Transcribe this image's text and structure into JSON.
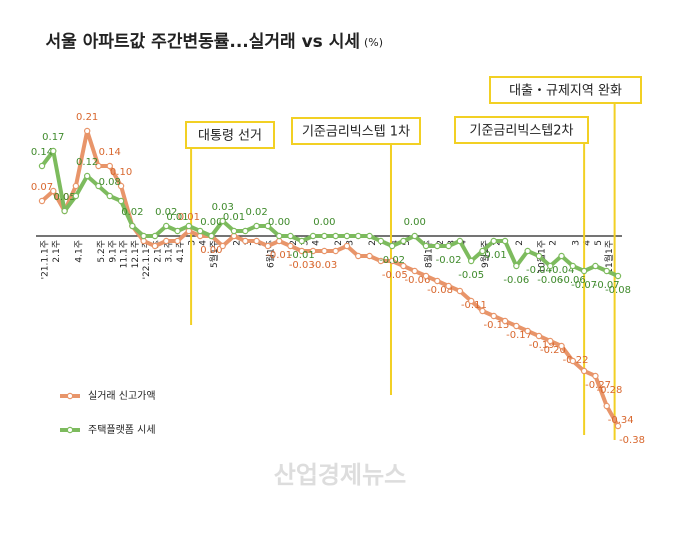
{
  "chart_data": {
    "type": "line",
    "title": "서울 아파트값 주간변동률...실거래 vs 시세",
    "unit": "(%)",
    "categories": [
      "'21.1.1주",
      "2.1주",
      null,
      "4.1주",
      null,
      "5.2주",
      "9.1주",
      "11.1주",
      "12.1주",
      "'22.1.1주",
      "2.1주",
      "3.1주",
      "4.1주",
      "3",
      "4",
      "5월1주",
      null,
      "2",
      "3",
      "4",
      "6월1주",
      null,
      "2",
      "3",
      "4",
      null,
      "2",
      "3",
      null,
      "2",
      "3",
      "4",
      "5",
      null,
      "8월1주",
      "2",
      "3",
      "4",
      null,
      "9월1주",
      "2",
      null,
      "2",
      null,
      "10월1주",
      "2",
      null,
      "3",
      "4",
      "5",
      "11월1주",
      null
    ],
    "ylim": [
      -0.42,
      0.25
    ],
    "series": [
      {
        "name": "실거래 신고가액",
        "color": "#e8956a",
        "values": [
          0.07,
          0.09,
          0.05,
          0.1,
          0.21,
          0.14,
          0.14,
          0.1,
          0.02,
          -0.01,
          -0.02,
          -0.01,
          -0.01,
          0.01,
          0.0,
          0.0,
          -0.02,
          0.0,
          -0.01,
          -0.01,
          -0.02,
          -0.01,
          -0.02,
          -0.03,
          -0.03,
          -0.03,
          -0.03,
          -0.02,
          -0.04,
          -0.04,
          -0.05,
          -0.05,
          -0.06,
          -0.07,
          -0.08,
          -0.09,
          -0.1,
          -0.11,
          -0.13,
          -0.15,
          -0.16,
          -0.17,
          -0.18,
          -0.19,
          -0.2,
          -0.21,
          -0.22,
          -0.25,
          -0.27,
          -0.28,
          -0.34,
          -0.38
        ],
        "value_labels": [
          "0.07",
          null,
          "0.05",
          null,
          "0.21",
          null,
          "0.14",
          "0.10",
          null,
          null,
          null,
          null,
          null,
          "0.01",
          null,
          "0.00",
          null,
          null,
          null,
          null,
          null,
          "-0.01",
          null,
          "-0.03",
          null,
          "-0.03",
          null,
          null,
          null,
          null,
          "-0.05",
          null,
          "-0.06",
          null,
          "-0.08",
          null,
          null,
          "-0.11",
          null,
          "-0.15",
          null,
          "-0.17",
          null,
          "-0.19",
          "-0.20",
          null,
          "-0.22",
          null,
          "-0.27",
          "-0.28",
          "-0.34",
          "-0.38"
        ]
      },
      {
        "name": "주택플랫폼 시세",
        "color": "#7dbb5e",
        "values": [
          0.14,
          0.17,
          0.05,
          0.08,
          0.12,
          0.1,
          0.08,
          0.07,
          0.02,
          0.0,
          0.0,
          0.02,
          0.01,
          0.02,
          0.01,
          0.0,
          0.03,
          0.01,
          0.01,
          0.02,
          0.02,
          0.0,
          0.0,
          -0.01,
          0.0,
          0.0,
          0.0,
          0.0,
          0.0,
          0.0,
          -0.01,
          -0.02,
          -0.01,
          0.0,
          -0.02,
          -0.02,
          -0.02,
          -0.01,
          -0.05,
          -0.03,
          -0.01,
          -0.01,
          -0.06,
          -0.03,
          -0.04,
          -0.06,
          -0.04,
          -0.06,
          -0.07,
          -0.06,
          -0.07,
          -0.08
        ],
        "value_labels": [
          "0.14",
          "0.17",
          "0.05",
          null,
          "0.12",
          null,
          "0.08",
          null,
          "0.02",
          null,
          null,
          "0.02",
          "0.01",
          null,
          null,
          "0.00",
          "0.03",
          "0.01",
          null,
          "0.02",
          null,
          "0.00",
          null,
          "-0.01",
          null,
          "0.00",
          null,
          null,
          null,
          null,
          null,
          "-0.02",
          null,
          "0.00",
          null,
          null,
          "-0.02",
          null,
          "-0.05",
          null,
          "-0.01",
          null,
          "-0.06",
          null,
          "-0.04",
          "-0.06",
          "-0.04",
          "-0.06",
          "-0.07",
          null,
          "-0.07",
          "-0.08"
        ]
      }
    ],
    "annotations": [
      "대통령 선거",
      "기준금리빅스텝 1차",
      "기준금리빅스텝2차",
      "대출・규제지역 완화"
    ],
    "watermark": "산업경제뉴스"
  }
}
